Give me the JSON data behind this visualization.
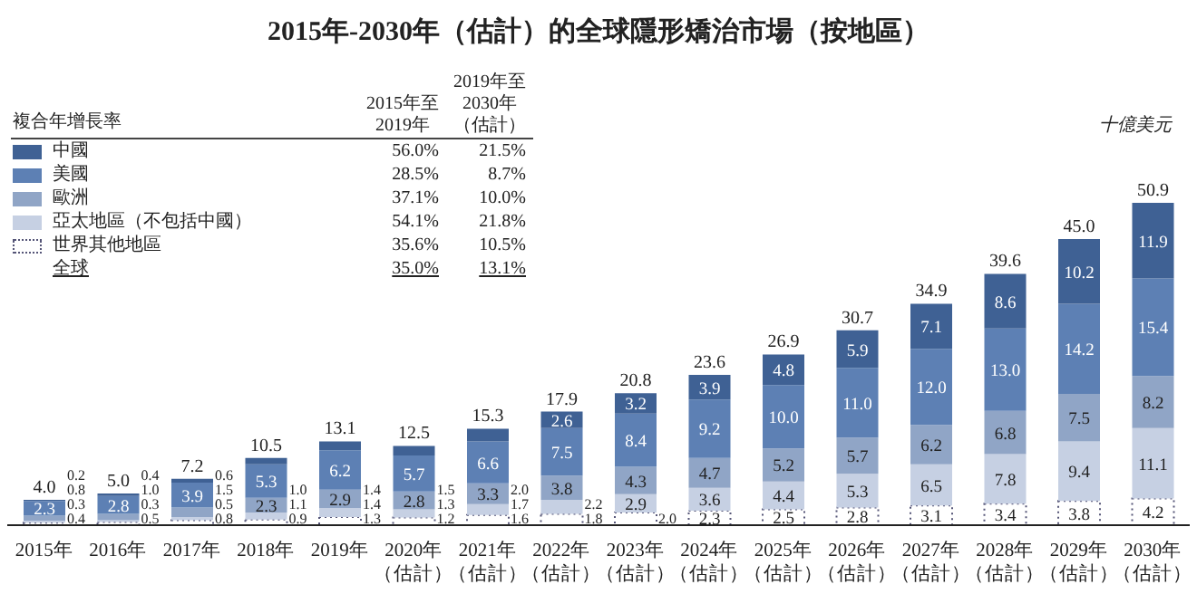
{
  "chart_data": {
    "type": "bar",
    "title": "2015年-2030年（估計）的全球隱形矯治市場（按地區）",
    "ylabel": "十億美元",
    "legend_title": "複合年增長率",
    "stacked": true,
    "legend": "top left",
    "tick_labels": "x",
    "categories": [
      "2015年",
      "2016年",
      "2017年",
      "2018年",
      "2019年",
      "2020年（估計）",
      "2021年（估計）",
      "2022年（估計）",
      "2023年（估計）",
      "2024年（估計）",
      "2025年（估計）",
      "2026年（估計）",
      "2027年（估計）",
      "2028年（估計）",
      "2029年（估計）",
      "2030年（估計）"
    ],
    "series": [
      {
        "name": "世界其他地區",
        "color": "#ffffff",
        "values": [
          0.4,
          0.5,
          0.8,
          0.9,
          1.3,
          1.2,
          1.6,
          1.8,
          2.0,
          2.3,
          2.5,
          2.8,
          3.1,
          3.4,
          3.8,
          4.2
        ],
        "value_labels": [
          "0.4",
          "0.5",
          "0.8",
          "0.9",
          "1.3",
          "1.2",
          "1.6",
          "1.8",
          "2.0",
          "2.3",
          "2.5",
          "2.8",
          "3.1",
          "3.4",
          "3.8",
          "4.2"
        ]
      },
      {
        "name": "亞太地區（不包括中國）",
        "color": "#c6d0e3",
        "values": [
          0.3,
          0.3,
          0.5,
          1.1,
          1.4,
          1.3,
          1.7,
          2.2,
          2.9,
          3.6,
          4.4,
          5.3,
          6.5,
          7.8,
          9.4,
          11.1
        ],
        "value_labels": [
          "0.3",
          "0.3",
          "0.5",
          "1.1",
          "1.4",
          "1.3",
          "1.7",
          "2.2",
          "2.9",
          "3.6",
          "4.4",
          "5.3",
          "6.5",
          "7.8",
          "9.4",
          "11.1"
        ]
      },
      {
        "name": "歐洲",
        "color": "#90a5c6",
        "values": [
          0.8,
          1.0,
          1.5,
          2.3,
          2.9,
          2.8,
          3.3,
          3.8,
          4.3,
          4.7,
          5.2,
          5.7,
          6.2,
          6.8,
          7.5,
          8.2
        ],
        "value_labels": [
          "0.8",
          "1.0",
          "1.5",
          "2.3",
          "2.9",
          "2.8",
          "3.3",
          "3.8",
          "4.3",
          "4.7",
          "5.2",
          "5.7",
          "6.2",
          "6.8",
          "7.5",
          "8.2"
        ]
      },
      {
        "name": "美國",
        "color": "#5d80b4",
        "values": [
          2.3,
          2.8,
          3.9,
          5.3,
          6.2,
          5.7,
          6.6,
          7.5,
          8.4,
          9.2,
          10.0,
          11.0,
          12.0,
          13.0,
          14.2,
          15.4
        ],
        "value_labels": [
          "2.3",
          "2.8",
          "3.9",
          "5.3",
          "6.2",
          "5.7",
          "6.6",
          "7.5",
          "8.4",
          "9.2",
          "10.0",
          "11.0",
          "12.0",
          "13.0",
          "14.2",
          "15.4"
        ]
      },
      {
        "name": "中國",
        "color": "#3f6194",
        "values": [
          0.2,
          0.4,
          0.6,
          1.0,
          1.4,
          1.5,
          2.0,
          2.6,
          3.2,
          3.9,
          4.8,
          5.9,
          7.1,
          8.6,
          10.2,
          11.9
        ],
        "value_labels": [
          "0.2",
          "0.4",
          "0.6",
          "1.0",
          "1.4",
          "1.5",
          "2.0",
          "2.6",
          "3.2",
          "3.9",
          "4.8",
          "5.9",
          "7.1",
          "8.6",
          "10.2",
          "11.9"
        ]
      }
    ],
    "totals": [
      "4.0",
      "5.0",
      "7.2",
      "10.5",
      "13.1",
      "12.5",
      "15.3",
      "17.9",
      "20.8",
      "23.6",
      "26.9",
      "30.7",
      "34.9",
      "39.6",
      "45.0",
      "50.9"
    ],
    "annotations": [
      "2015年至2019年",
      "2019年至2030年（估計）",
      "35.6%",
      "10.5%",
      "54.1%",
      "21.8%",
      "37.1%",
      "10.0%",
      "28.5%",
      "8.7%",
      "56.0%",
      "21.5%",
      "全球",
      "35.0%",
      "13.1%"
    ]
  }
}
